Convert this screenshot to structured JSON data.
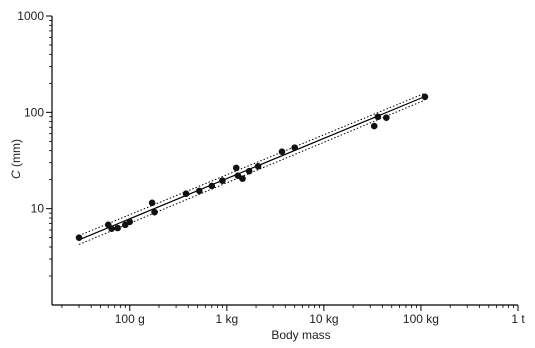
{
  "chart_data": {
    "type": "scatter",
    "title": "",
    "xlabel": "Body mass",
    "ylabel_italic": "C",
    "ylabel_rest": " (mm)",
    "xscale": "log",
    "yscale": "log",
    "x_unit": "kg",
    "y_unit": "mm",
    "xlim": [
      0.0158,
      1000
    ],
    "ylim": [
      1,
      1000
    ],
    "grid": false,
    "x_ticks": [
      {
        "value": 0.1,
        "label": "100 g"
      },
      {
        "value": 1,
        "label": "1 kg"
      },
      {
        "value": 10,
        "label": "10 kg"
      },
      {
        "value": 100,
        "label": "100 kg"
      },
      {
        "value": 1000,
        "label": "1 t"
      }
    ],
    "y_ticks": [
      {
        "value": 10,
        "label": "10"
      },
      {
        "value": 100,
        "label": "100"
      },
      {
        "value": 1000,
        "label": "1000"
      }
    ],
    "points": [
      {
        "x": 0.03,
        "y": 5.0
      },
      {
        "x": 0.06,
        "y": 6.8
      },
      {
        "x": 0.065,
        "y": 6.2
      },
      {
        "x": 0.075,
        "y": 6.3
      },
      {
        "x": 0.09,
        "y": 6.8
      },
      {
        "x": 0.1,
        "y": 7.3
      },
      {
        "x": 0.17,
        "y": 11.5
      },
      {
        "x": 0.18,
        "y": 9.2
      },
      {
        "x": 0.38,
        "y": 14.3
      },
      {
        "x": 0.52,
        "y": 15.3
      },
      {
        "x": 0.7,
        "y": 17.2
      },
      {
        "x": 0.9,
        "y": 19.5
      },
      {
        "x": 1.25,
        "y": 26.5
      },
      {
        "x": 1.3,
        "y": 22.0
      },
      {
        "x": 1.45,
        "y": 20.5
      },
      {
        "x": 1.7,
        "y": 24.5
      },
      {
        "x": 2.1,
        "y": 27.5
      },
      {
        "x": 3.7,
        "y": 39.0
      },
      {
        "x": 5.0,
        "y": 43.0
      },
      {
        "x": 33,
        "y": 72
      },
      {
        "x": 36,
        "y": 90
      },
      {
        "x": 44,
        "y": 88
      },
      {
        "x": 110,
        "y": 145
      }
    ],
    "regression": {
      "x_range": [
        0.03,
        110
      ],
      "y_range": [
        4.75,
        146
      ]
    },
    "confidence_band": {
      "upper": [
        5.25,
        158
      ],
      "lower": [
        4.25,
        134
      ]
    }
  }
}
